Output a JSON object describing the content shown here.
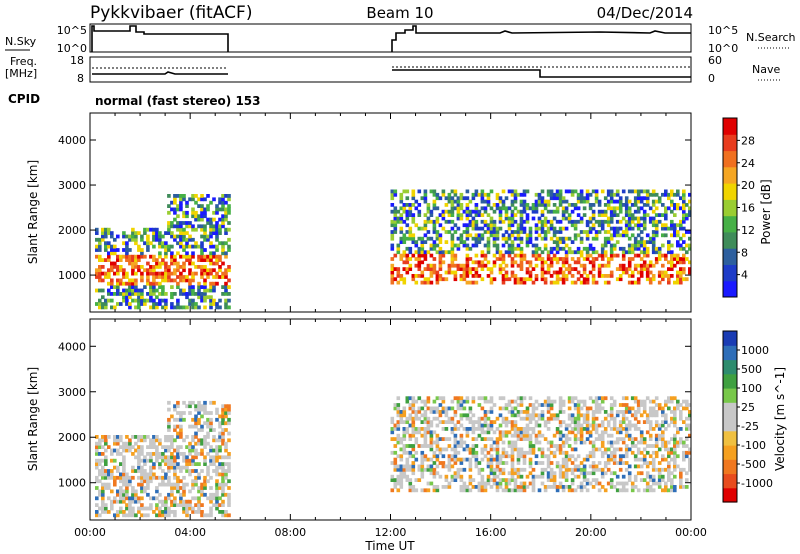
{
  "header": {
    "station": "Pykkvibaer (fitACF)",
    "beam": "Beam 10",
    "date": "04/Dec/2014"
  },
  "noise_panel": {
    "left_label": "N.Sky",
    "right_label": "N.Search",
    "left_ticks": [
      "10^5",
      "10^0"
    ],
    "right_ticks": [
      "10^5",
      "10^0"
    ]
  },
  "freq_panel": {
    "left_label_1": "Freq.",
    "left_label_2": "[MHz]",
    "right_label": "Nave",
    "left_ticks": [
      "18",
      "8"
    ],
    "right_ticks": [
      "60",
      "0"
    ]
  },
  "cpid": {
    "label": "CPID",
    "text": "normal (fast stereo) 153"
  },
  "chart_data": [
    {
      "type": "heatmap",
      "panel": "power",
      "ylabel": "Slant Range [km]",
      "ylim": [
        180,
        4600
      ],
      "yticks": [
        "1000",
        "2000",
        "3000",
        "4000"
      ],
      "xlim_hours": [
        0,
        24
      ],
      "colorbar": {
        "label": "Power [dB]",
        "ticks": [
          "4",
          "8",
          "12",
          "16",
          "20",
          "24",
          "28"
        ],
        "colors": [
          "#1a1aff",
          "#1e3cc8",
          "#2d5f9e",
          "#3f8c5a",
          "#46b046",
          "#9acd32",
          "#f0d400",
          "#f5a623",
          "#f07020",
          "#e83c1e",
          "#e00000"
        ]
      },
      "data_coverage_hours": [
        [
          0.2,
          5.5
        ],
        [
          12.0,
          24.0
        ]
      ]
    },
    {
      "type": "heatmap",
      "panel": "velocity",
      "ylabel": "Slant Range [km]",
      "ylim": [
        180,
        4600
      ],
      "yticks": [
        "1000",
        "2000",
        "3000",
        "4000"
      ],
      "xlim_hours": [
        0,
        24
      ],
      "colorbar": {
        "label": "Velocity [m s^-1]",
        "ticks": [
          "1000",
          "500",
          "100",
          "25",
          "-25",
          "-100",
          "-500",
          "-1000"
        ],
        "colors": [
          "#1a3cb4",
          "#2e6eb8",
          "#2e8c6e",
          "#3fa040",
          "#78c84a",
          "#c8c8c8",
          "#c8c8c8",
          "#f0c040",
          "#f5a020",
          "#f07820",
          "#e84c1e",
          "#e00000"
        ]
      },
      "data_coverage_hours": [
        [
          0.2,
          5.5
        ],
        [
          12.0,
          24.0
        ]
      ]
    }
  ],
  "x_axis": {
    "ticks": [
      "00:00",
      "04:00",
      "08:00",
      "12:00",
      "16:00",
      "20:00",
      "00:00"
    ],
    "label": "Time UT"
  }
}
